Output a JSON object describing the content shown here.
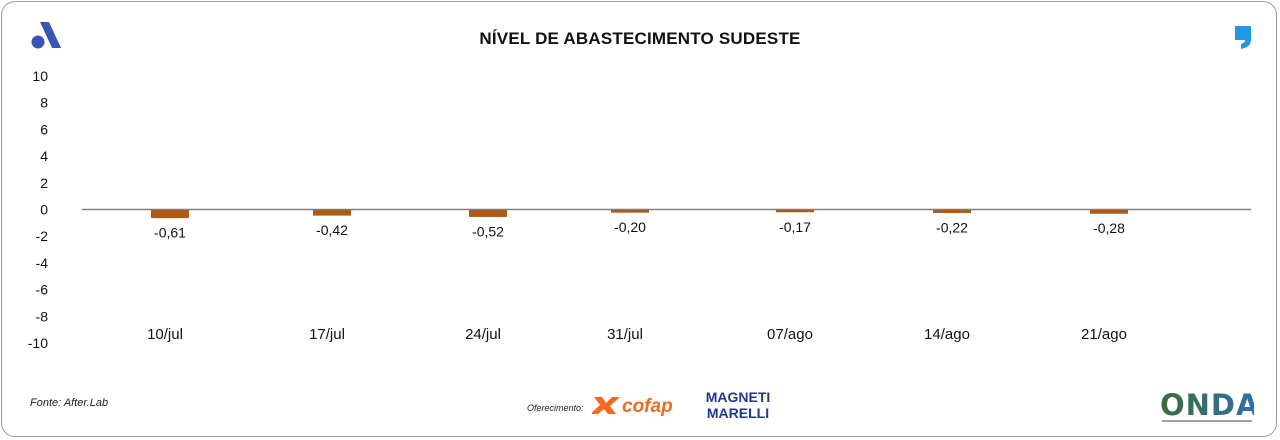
{
  "header": {
    "title": "NÍVEL DE ABASTECIMENTO SUDESTE"
  },
  "footer": {
    "source": "Fonte: After.Lab",
    "sponsor_label": "Oferecimento:",
    "sponsor_1": "cofap",
    "sponsor_2_line1": "MAGNETI",
    "sponsor_2_line2": "MARELLI",
    "brand": "ONDA"
  },
  "colors": {
    "bar": "#b05a14",
    "axis": "#7f7f7f",
    "text": "#111111",
    "logo_blue": "#3a56b5",
    "quote_blue": "#1e9be0",
    "cofap_orange": "#f26a21",
    "marelli_blue": "#1f3a8a",
    "onda_green": "#3e6b3a",
    "onda_blue": "#2f6fb0"
  },
  "icons": {
    "left_logo": "a-brand-logo-icon",
    "right_logo": "quote-mark-icon"
  },
  "chart_data": {
    "type": "bar",
    "title": "NÍVEL DE ABASTECIMENTO SUDESTE",
    "xlabel": "",
    "ylabel": "",
    "categories": [
      "10/jul",
      "17/jul",
      "24/jul",
      "31/jul",
      "07/ago",
      "14/ago",
      "21/ago"
    ],
    "values": [
      -0.61,
      -0.42,
      -0.52,
      -0.2,
      -0.17,
      -0.22,
      -0.28
    ],
    "value_labels": [
      "-0,61",
      "-0,42",
      "-0,52",
      "-0,20",
      "-0,17",
      "-0,22",
      "-0,28"
    ],
    "ylim": [
      -10,
      10
    ],
    "yticks": [
      10,
      8,
      6,
      4,
      2,
      0,
      -2,
      -4,
      -6,
      -8,
      -10
    ],
    "grid": false,
    "legend": "none"
  }
}
